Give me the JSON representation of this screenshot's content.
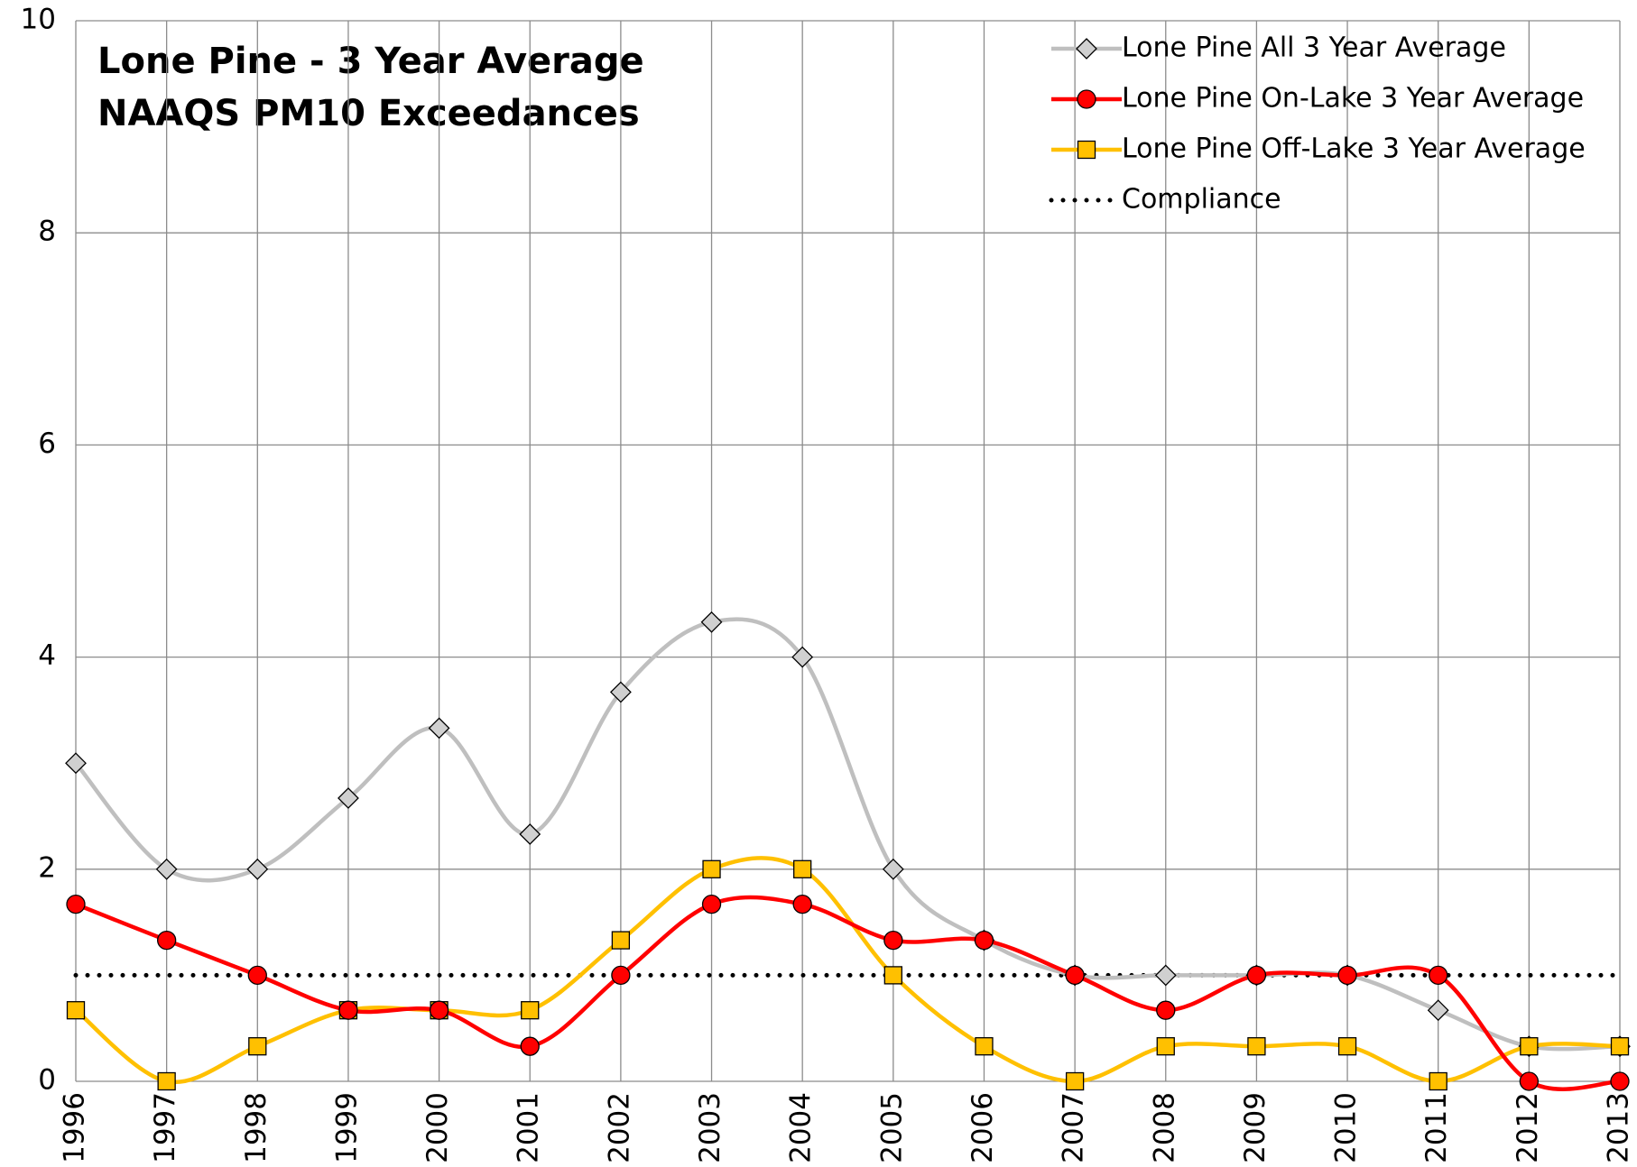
{
  "chart_data": {
    "type": "line",
    "title": "Lone Pine - 3 Year Average",
    "subtitle": "NAAQS PM10 Exceedances",
    "categories": [
      "1996",
      "1997",
      "1998",
      "1999",
      "2000",
      "2001",
      "2002",
      "2003",
      "2004",
      "2005",
      "2006",
      "2007",
      "2008",
      "2009",
      "2010",
      "2011",
      "2012",
      "2013"
    ],
    "series": [
      {
        "name": "Lone Pine All 3 Year Average",
        "color": "#bfbfbf",
        "marker": "diamond",
        "marker_color": "#d0d0d0",
        "values": [
          3,
          2,
          2,
          2.67,
          3.33,
          2.33,
          3.67,
          4.33,
          4,
          2,
          1.33,
          1,
          1,
          1,
          1,
          0.67,
          0.33,
          0.33
        ]
      },
      {
        "name": "Lone Pine On-Lake 3 Year Average",
        "color": "#ff0000",
        "marker": "circle",
        "marker_color": "#ff0000",
        "values": [
          1.67,
          1.33,
          1,
          0.67,
          0.67,
          0.33,
          1,
          1.67,
          1.67,
          1.33,
          1.33,
          1,
          0.67,
          1,
          1,
          1,
          0,
          0
        ]
      },
      {
        "name": "Lone Pine Off-Lake 3 Year Average",
        "color": "#ffc000",
        "marker": "square",
        "marker_color": "#ffc000",
        "values": [
          0.67,
          0,
          0.33,
          0.67,
          0.67,
          0.67,
          1.33,
          2,
          2,
          1,
          0.33,
          0,
          0.33,
          0.33,
          0.33,
          0,
          0.33,
          0.33
        ]
      },
      {
        "name": "Compliance",
        "color": "#000000",
        "dotted": true,
        "values": [
          1,
          1,
          1,
          1,
          1,
          1,
          1,
          1,
          1,
          1,
          1,
          1,
          1,
          1,
          1,
          1,
          1,
          1
        ]
      }
    ],
    "ylim": [
      0,
      10
    ],
    "yticks": [
      0,
      2,
      4,
      6,
      8,
      10
    ],
    "grid": true,
    "legend": "top-right"
  }
}
